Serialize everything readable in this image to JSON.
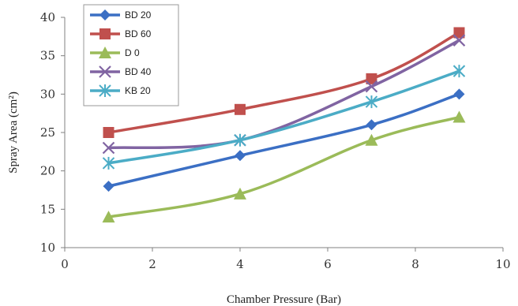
{
  "chart_data": {
    "type": "line",
    "title": "",
    "xlabel": "Chamber Pressure (Bar)",
    "ylabel": "Spray Area (cm²)",
    "xlim": [
      0,
      10
    ],
    "ylim": [
      10,
      40
    ],
    "xticks": [
      "0",
      "2",
      "4",
      "6",
      "8",
      "10"
    ],
    "yticks": [
      "10",
      "15",
      "20",
      "25",
      "30",
      "35",
      "40"
    ],
    "grid": false,
    "legend_position": "top-left",
    "series": [
      {
        "name": "BD 20",
        "color": "#3b6fc4",
        "marker": "diamond",
        "x": [
          1,
          4,
          7,
          9
        ],
        "y": [
          18,
          22,
          26,
          30
        ]
      },
      {
        "name": "BD 60",
        "color": "#c0504d",
        "marker": "square",
        "x": [
          1,
          4,
          7,
          9
        ],
        "y": [
          25,
          28,
          32,
          38
        ]
      },
      {
        "name": "D 0",
        "color": "#9bbb59",
        "marker": "triangle",
        "x": [
          1,
          4,
          7,
          9
        ],
        "y": [
          14,
          17,
          24,
          27
        ]
      },
      {
        "name": "BD 40",
        "color": "#8064a2",
        "marker": "x",
        "x": [
          1,
          4,
          7,
          9
        ],
        "y": [
          23,
          24,
          31,
          37
        ]
      },
      {
        "name": "KB 20",
        "color": "#4bacc6",
        "marker": "star",
        "x": [
          1,
          4,
          7,
          9
        ],
        "y": [
          21,
          24,
          29,
          33
        ]
      }
    ]
  }
}
